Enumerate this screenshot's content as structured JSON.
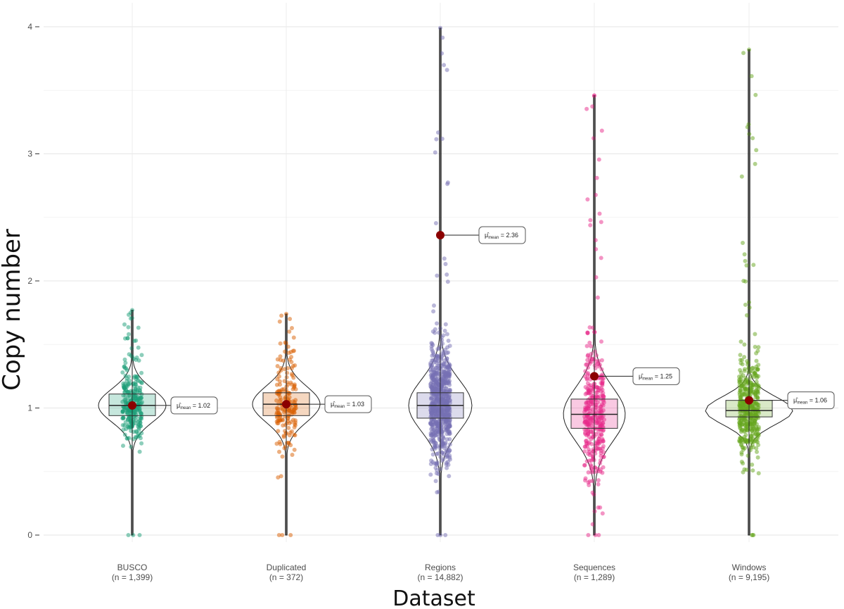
{
  "chart_data": {
    "type": "violin",
    "xlabel": "Dataset",
    "ylabel": "Copy number",
    "ylim": [
      0,
      4
    ],
    "yticks": [
      0,
      1,
      2,
      3,
      4
    ],
    "grid": true,
    "colors": {
      "BUSCO": "#1b9e77",
      "Duplicated": "#d95f02",
      "Regions": "#7570b3",
      "Sequences": "#e7298a",
      "Windows": "#66a61e",
      "mean_point": "#8b0000"
    },
    "series": [
      {
        "name": "BUSCO",
        "n_label": "(n = 1,399)",
        "mean": 1.02,
        "mean_label": "1.02",
        "min": 0,
        "max": 1.77,
        "q1": 0.94,
        "median": 1.02,
        "q3": 1.11,
        "whisker_low": 0.7,
        "whisker_high": 1.35
      },
      {
        "name": "Duplicated",
        "n_label": "(n = 372)",
        "mean": 1.03,
        "mean_label": "1.03",
        "min": 0,
        "max": 1.74,
        "q1": 0.94,
        "median": 1.03,
        "q3": 1.12,
        "whisker_low": 0.68,
        "whisker_high": 1.38
      },
      {
        "name": "Regions",
        "n_label": "(n = 14,882)",
        "mean": 2.36,
        "mean_label": "2.36",
        "min": 0,
        "max": 3.99,
        "q1": 0.92,
        "median": 1.02,
        "q3": 1.12,
        "whisker_low": 0.62,
        "whisker_high": 1.42
      },
      {
        "name": "Sequences",
        "n_label": "(n = 1,289)",
        "mean": 1.25,
        "mean_label": "1.25",
        "min": 0,
        "max": 3.46,
        "q1": 0.84,
        "median": 0.95,
        "q3": 1.07,
        "whisker_low": 0.5,
        "whisker_high": 1.41
      },
      {
        "name": "Windows",
        "n_label": "(n = 9,195)",
        "mean": 1.06,
        "mean_label": "1.06",
        "min": 0,
        "max": 3.82,
        "q1": 0.93,
        "median": 0.98,
        "q3": 1.06,
        "whisker_low": 0.73,
        "whisker_high": 1.26
      }
    ]
  }
}
